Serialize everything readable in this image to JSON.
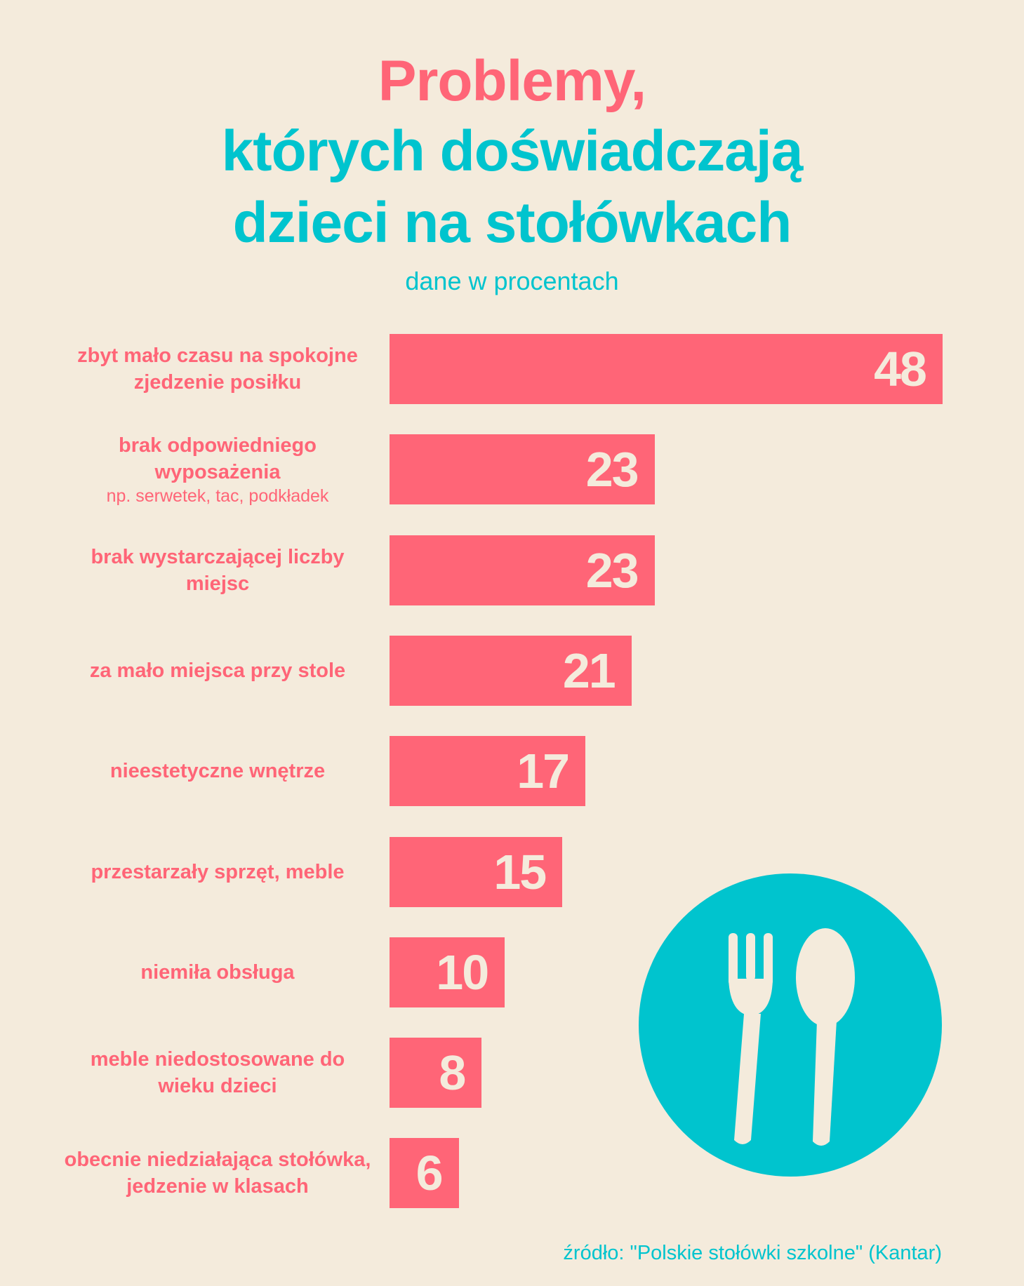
{
  "title": {
    "line1": "Problemy,",
    "line2": "których doświadczają",
    "line3": "dzieci na stołówkach"
  },
  "subtitle": "dane w procentach",
  "source": "źródło: \"Polskie stołówki szkolne\" (Kantar)",
  "colors": {
    "bar": "#FF6577",
    "accent": "#00C4CE",
    "background": "#F4EBDC"
  },
  "icon": "fork-and-spoon-icon",
  "chart_data": {
    "type": "bar",
    "orientation": "horizontal",
    "title": "Problemy, których doświadczają dzieci na stołówkach",
    "subtitle": "dane w procentach",
    "categories": [
      "zbyt mało czasu na spokojne zjedzenie posiłku",
      "brak odpowiedniego wyposażenia",
      "brak wystarczającej liczby miejsc",
      "za mało miejsca przy stole",
      "nieestetyczne wnętrze",
      "przestarzały sprzęt, meble",
      "niemiła obsługa",
      "meble niedostosowane do wieku dzieci",
      "obecnie niedziałająca stołówka, jedzenie w klasach"
    ],
    "notes": [
      "",
      "np. serwetek, tac, podkładek",
      "",
      "",
      "",
      "",
      "",
      "",
      ""
    ],
    "values": [
      48,
      23,
      23,
      21,
      17,
      15,
      10,
      8,
      6
    ],
    "labels": [
      "48",
      "23",
      "23",
      "21",
      "17",
      "15",
      "10",
      "8",
      "6"
    ],
    "xlim": [
      0,
      48
    ]
  }
}
